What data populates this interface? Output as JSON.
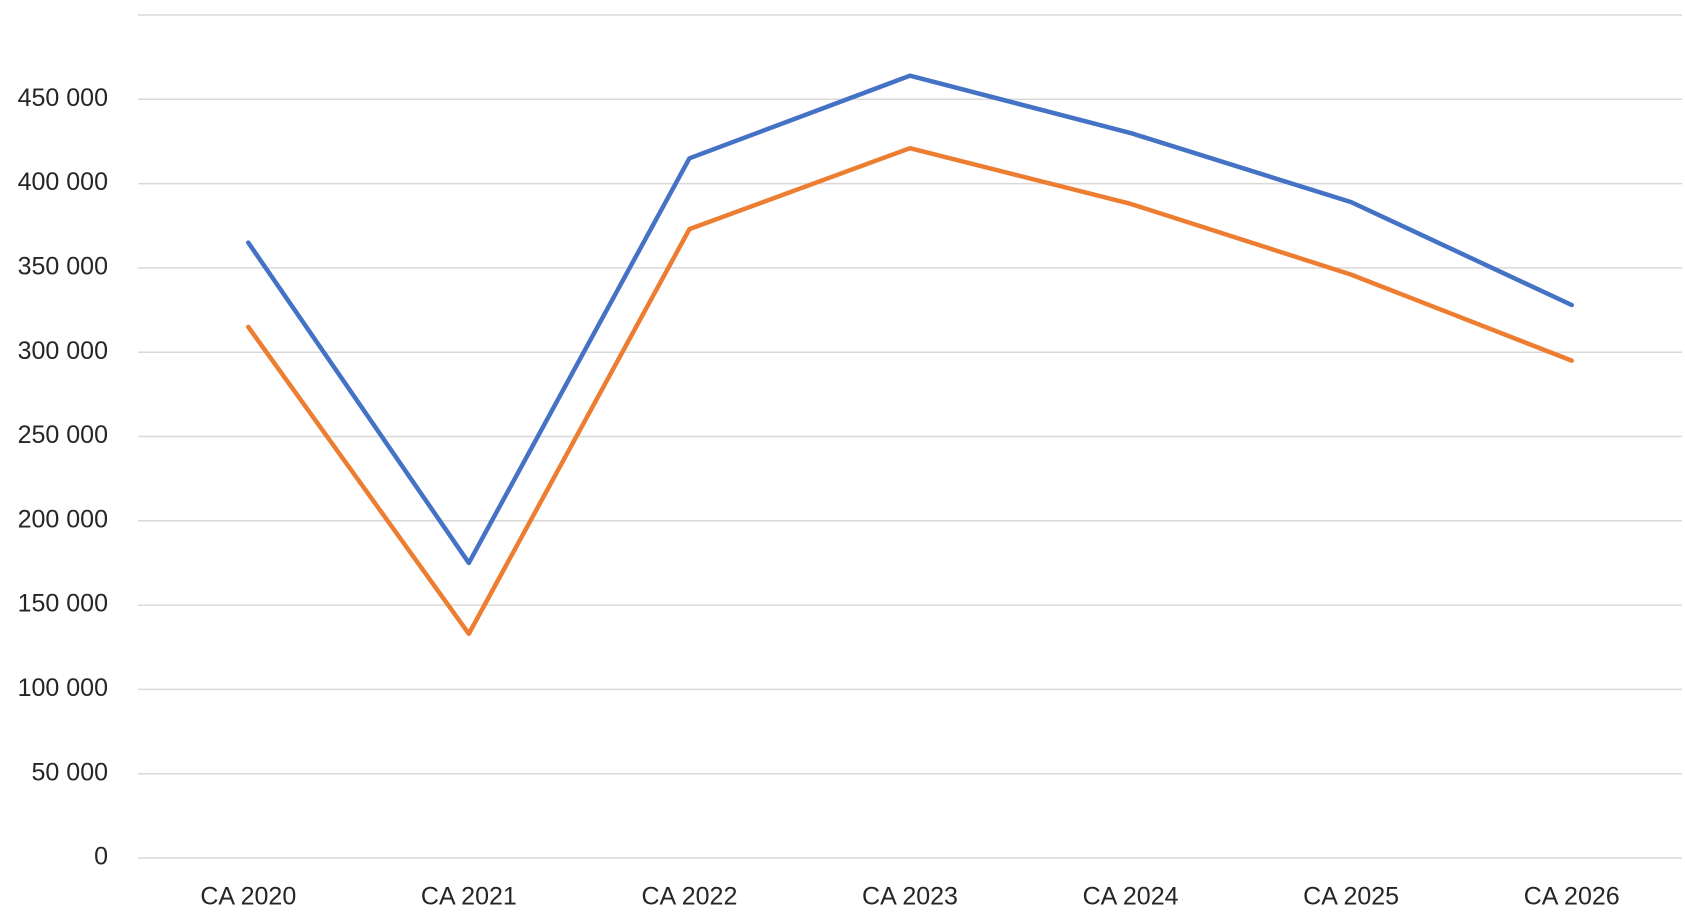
{
  "chart_data": {
    "type": "line",
    "categories": [
      "CA 2020",
      "CA 2021",
      "CA 2022",
      "CA 2023",
      "CA 2024",
      "CA 2025",
      "CA 2026"
    ],
    "series": [
      {
        "color": "#4472c4",
        "values": [
          365000,
          175000,
          415000,
          464000,
          430000,
          389000,
          328000
        ]
      },
      {
        "color": "#ed7d31",
        "values": [
          315000,
          133000,
          373000,
          421000,
          388000,
          346000,
          295000
        ]
      }
    ],
    "ylim": [
      0,
      500000
    ],
    "yticks": [
      0,
      {
        "value": 50000,
        "label": "50 000"
      },
      {
        "value": 100000,
        "label": "100 000"
      },
      {
        "value": 150000,
        "label": "150 000"
      },
      {
        "value": 200000,
        "label": "200 000"
      },
      {
        "value": 250000,
        "label": "250 000"
      },
      {
        "value": 300000,
        "label": "300 000"
      },
      {
        "value": 350000,
        "label": "350 000"
      },
      {
        "value": 400000,
        "label": "400 000"
      },
      {
        "value": 450000,
        "label": "450 000"
      },
      {
        "value": {
          "v": 0
        },
        "label": ""
      }
    ],
    "grid": true
  }
}
